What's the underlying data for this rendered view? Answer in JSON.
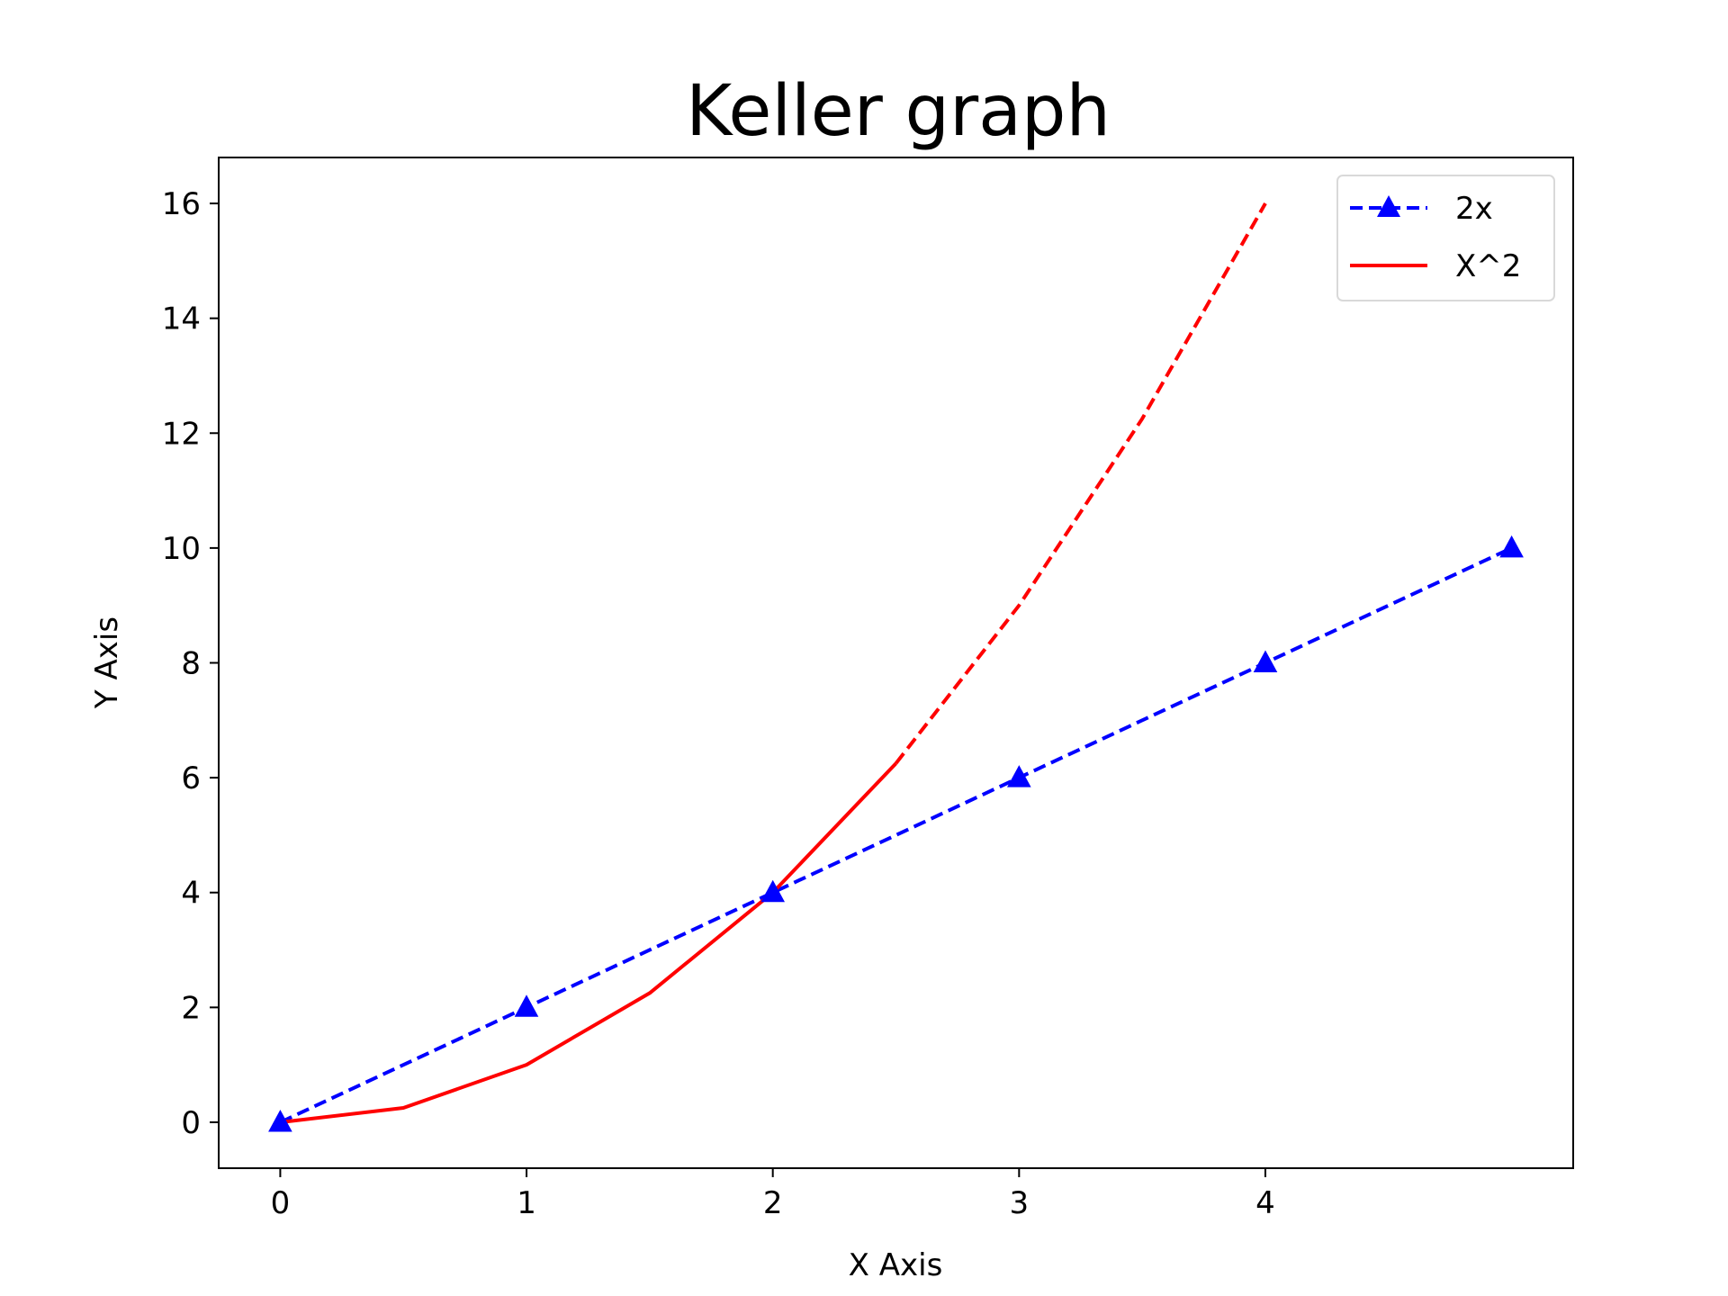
{
  "chart_data": {
    "type": "line",
    "title": "Keller graph",
    "xlabel": "X Axis",
    "ylabel": "Y Axis",
    "xlim": [
      -0.25,
      5.25
    ],
    "ylim": [
      -0.8,
      16.8
    ],
    "xticks": [
      0,
      1,
      2,
      3,
      4
    ],
    "yticks": [
      0,
      2,
      4,
      6,
      8,
      10,
      12,
      14,
      16
    ],
    "grid": false,
    "legend_position": "top-right",
    "series": [
      {
        "name": "2x",
        "color": "#0000ff",
        "line_style": "dashed",
        "marker": "triangle-up",
        "x": [
          0,
          1,
          2,
          3,
          4,
          5
        ],
        "y": [
          0,
          2,
          4,
          6,
          8,
          10
        ]
      },
      {
        "name": "X^2",
        "color": "#ff0000",
        "line_style": "solid",
        "marker": "none",
        "x": [
          0,
          0.5,
          1,
          1.5,
          2,
          2.5
        ],
        "y": [
          0,
          0.25,
          1,
          2.25,
          4,
          6.25
        ]
      },
      {
        "color": "#ff0000",
        "line_style": "dashed",
        "marker": "none",
        "x": [
          2.5,
          3,
          3.5,
          4
        ],
        "y": [
          6.25,
          9,
          12.25,
          16
        ]
      }
    ]
  }
}
